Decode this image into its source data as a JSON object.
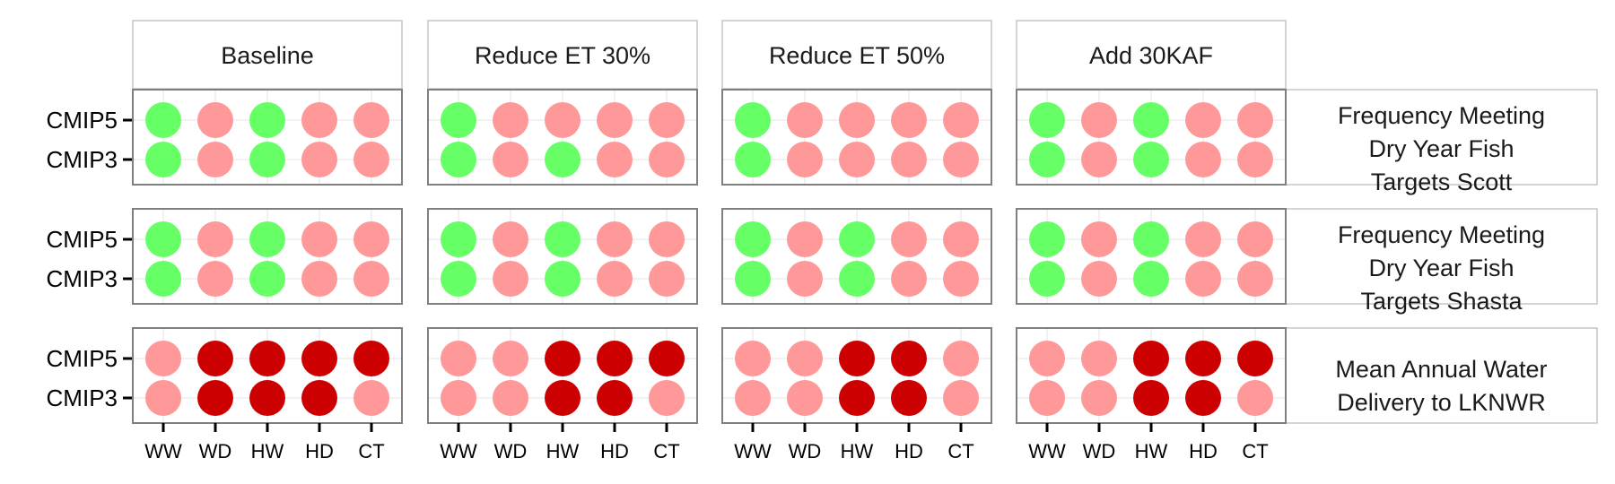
{
  "chart_data": {
    "type": "scatter",
    "columns": [
      "Baseline",
      "Reduce ET 30%",
      "Reduce ET 50%",
      "Add 30KAF"
    ],
    "rows": [
      [
        "Frequency Meeting",
        "Dry Year Fish",
        "Targets Scott"
      ],
      [
        "Frequency Meeting",
        "Dry Year Fish",
        "Targets Shasta"
      ],
      [
        "Mean Annual Water",
        "Delivery to LKNWR"
      ]
    ],
    "x_categories": [
      "WW",
      "WD",
      "HW",
      "HD",
      "CT"
    ],
    "y_categories": [
      "CMIP5",
      "CMIP3"
    ],
    "colors": {
      "G": "#66ff66",
      "P": "#ff9999",
      "R": "#cc0000"
    },
    "values": [
      [
        [
          [
            "G",
            "P",
            "G",
            "P",
            "P"
          ],
          [
            "G",
            "P",
            "G",
            "P",
            "P"
          ]
        ],
        [
          [
            "G",
            "P",
            "P",
            "P",
            "P"
          ],
          [
            "G",
            "P",
            "G",
            "P",
            "P"
          ]
        ],
        [
          [
            "G",
            "P",
            "P",
            "P",
            "P"
          ],
          [
            "G",
            "P",
            "P",
            "P",
            "P"
          ]
        ],
        [
          [
            "G",
            "P",
            "G",
            "P",
            "P"
          ],
          [
            "G",
            "P",
            "G",
            "P",
            "P"
          ]
        ]
      ],
      [
        [
          [
            "G",
            "P",
            "G",
            "P",
            "P"
          ],
          [
            "G",
            "P",
            "G",
            "P",
            "P"
          ]
        ],
        [
          [
            "G",
            "P",
            "G",
            "P",
            "P"
          ],
          [
            "G",
            "P",
            "G",
            "P",
            "P"
          ]
        ],
        [
          [
            "G",
            "P",
            "G",
            "P",
            "P"
          ],
          [
            "G",
            "P",
            "G",
            "P",
            "P"
          ]
        ],
        [
          [
            "G",
            "P",
            "G",
            "P",
            "P"
          ],
          [
            "G",
            "P",
            "G",
            "P",
            "P"
          ]
        ]
      ],
      [
        [
          [
            "P",
            "R",
            "R",
            "R",
            "R"
          ],
          [
            "P",
            "R",
            "R",
            "R",
            "P"
          ]
        ],
        [
          [
            "P",
            "P",
            "R",
            "R",
            "R"
          ],
          [
            "P",
            "P",
            "R",
            "R",
            "P"
          ]
        ],
        [
          [
            "P",
            "P",
            "R",
            "R",
            "P"
          ],
          [
            "P",
            "P",
            "R",
            "R",
            "P"
          ]
        ],
        [
          [
            "P",
            "P",
            "R",
            "R",
            "R"
          ],
          [
            "P",
            "P",
            "R",
            "R",
            "P"
          ]
        ]
      ]
    ],
    "grid": true
  }
}
